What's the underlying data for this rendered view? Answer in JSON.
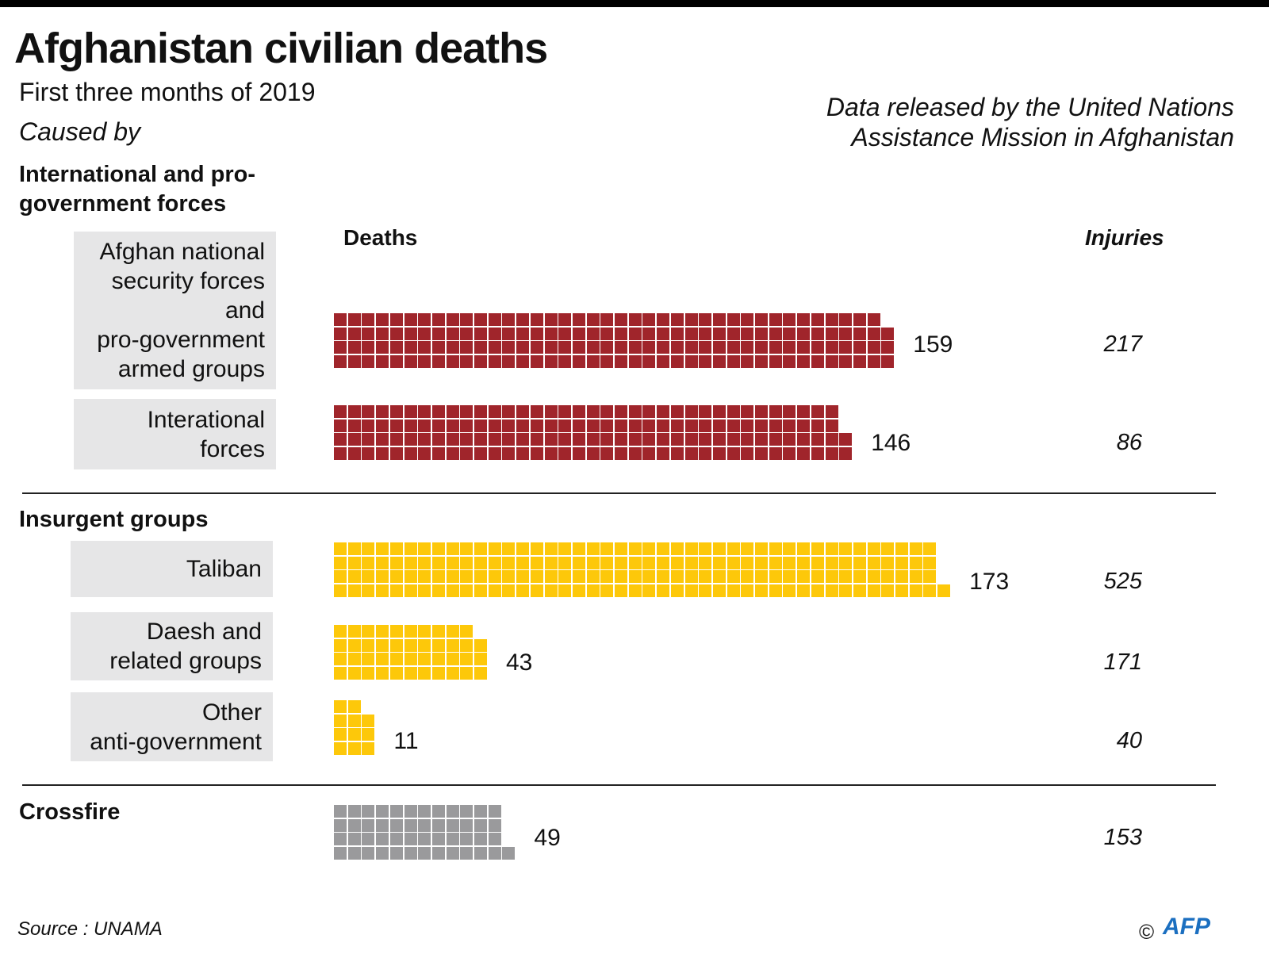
{
  "header": {
    "title": "Afghanistan civilian deaths",
    "subtitle": "First three months of 2019",
    "caused_by": "Caused by",
    "note_line1": "Data released by the United Nations",
    "note_line2": "Assistance Mission in Afghanistan"
  },
  "columns": {
    "deaths": "Deaths",
    "injuries": "Injuries"
  },
  "groups": [
    "International and pro-government forces",
    "Insurgent groups",
    "Crossfire"
  ],
  "footer": {
    "source": "Source : UNAMA",
    "copyright": "©",
    "logo": "AFP"
  },
  "chart_data": {
    "type": "waffle",
    "title": "Afghanistan civilian deaths",
    "subtitle": "First three months of 2019",
    "unit": "1 square = 1 death",
    "colors": {
      "pro_government": "#a0252b",
      "insurgent": "#fdc80a",
      "crossfire": "#9a9a9c"
    },
    "categories": [
      {
        "group": "International and pro-government forces",
        "label": "Afghan national security forces and pro-government armed groups",
        "deaths": 159,
        "injuries": 217,
        "color_key": "pro_government"
      },
      {
        "group": "International and pro-government forces",
        "label": "Interational forces",
        "deaths": 146,
        "injuries": 86,
        "color_key": "pro_government"
      },
      {
        "group": "Insurgent groups",
        "label": "Taliban",
        "deaths": 173,
        "injuries": 525,
        "color_key": "insurgent"
      },
      {
        "group": "Insurgent groups",
        "label": "Daesh and related groups",
        "deaths": 43,
        "injuries": 171,
        "color_key": "insurgent"
      },
      {
        "group": "Insurgent groups",
        "label": "Other anti-government",
        "deaths": 11,
        "injuries": 40,
        "color_key": "insurgent"
      },
      {
        "group": "Crossfire",
        "label": "Crossfire",
        "deaths": 49,
        "injuries": 153,
        "color_key": "crossfire"
      }
    ],
    "labels_lines": [
      [
        "Afghan national",
        "security forces",
        "and",
        "pro-government",
        "armed groups"
      ],
      [
        "Interational",
        "forces"
      ],
      [
        "Taliban"
      ],
      [
        "Daesh and",
        "related groups"
      ],
      [
        "Other",
        "anti-government"
      ],
      []
    ]
  }
}
